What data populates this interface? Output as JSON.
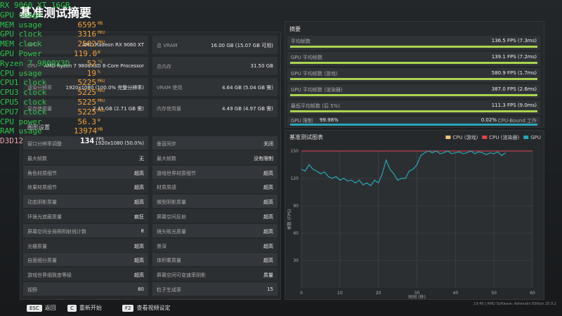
{
  "overlay": {
    "rows": [
      {
        "label": "RX 9060 XT 16GB"
      },
      {
        "label": "GPU usage"
      },
      {
        "label": "MEM usage",
        "value": "6595",
        "unit": "MB"
      },
      {
        "label": "GPU clock",
        "value": "3316",
        "unit": "MHz"
      },
      {
        "label": "MEM clock",
        "value": "2502",
        "unit": "MHz"
      },
      {
        "label": "GPU Power",
        "value": "119.0",
        "unit": "W"
      },
      {
        "label": "Ryzen 7 9800X3D",
        "value": "52",
        "unit": "°C"
      },
      {
        "label": "CPU usage",
        "value": "19",
        "unit": "%"
      },
      {
        "label": "CPU1 clock",
        "value": "5225",
        "unit": "MHz"
      },
      {
        "label": "CPU3 clock",
        "value": "5225",
        "unit": "MHz"
      },
      {
        "label": "CPU5 clock",
        "value": "5225",
        "unit": "MHz"
      },
      {
        "label": "CPU7 clock",
        "value": "5225",
        "unit": "MHz"
      },
      {
        "label": "CPU power",
        "value": "56.3",
        "unit": "W"
      },
      {
        "label": "RAM usage",
        "value": "13974",
        "unit": "MB"
      },
      {
        "label": "D3D12",
        "value": "134",
        "unit": "FPS"
      }
    ]
  },
  "header": {
    "title": "基准测试摘要"
  },
  "system": {
    "rows": [
      [
        "GPU",
        "AMD Radeon RX 9060 XT",
        "总 VRAM",
        "16.00 GB (15.07 GB 可用)"
      ],
      [
        "CPU",
        "AMD Ryzen 7 9800X3D 8-Core Processor",
        "总内存",
        "31.50 GB"
      ],
      [
        "渲染分辨率",
        "1920x1080 (100.0% 完整分辨率)",
        "VRAM 使用",
        "4.64 GB (5.04 GB 需)"
      ],
      [
        "显存使用量",
        "2.45 GB (2.71 GB 需)",
        "内存使用量",
        "4.49 GB (4.97 GB 需)"
      ]
    ]
  },
  "settings": {
    "title": "图形设置",
    "rows": [
      [
        "窗口分辨率调整",
        "1920x1080 (50.0%)",
        "垂直同步",
        "关闭"
      ],
      [
        "最大帧数",
        "无",
        "最大帧数",
        "没有限制"
      ],
      [
        "角色材质细节",
        "超高",
        "游戏世界材质细节",
        "超高"
      ],
      [
        "效果材质细节",
        "超高",
        "材质质感",
        "超高"
      ],
      [
        "动态阴影质量",
        "超高",
        "微型阴影质量",
        "超高"
      ],
      [
        "环境光遮蔽质量",
        "疯狂",
        "屏幕空间反射",
        "超高"
      ],
      [
        "屏幕空间全局照明射线计数",
        "8",
        "镜头眩光质量",
        "超高"
      ],
      [
        "光栅质量",
        "超高",
        "景深",
        "超高"
      ],
      [
        "自面细分质量",
        "超高",
        "体积雾质量",
        "超高"
      ],
      [
        "游戏世界细致度等级",
        "超高",
        "屏幕空间可变速率阴影",
        "质量"
      ],
      [
        "视野",
        "80",
        "粒子生成率",
        "15"
      ]
    ]
  },
  "summary": {
    "title": "摘要",
    "rows": [
      {
        "label": "平均帧数",
        "value": "136.5 FPS (7.3ms)"
      },
      {
        "label": "GPU 平均帧数",
        "value": "139.1 FPS (7.2ms)"
      },
      {
        "label": "GPU 平均帧数 (游戏)",
        "value": "580.9 FPS (1.7ms)"
      },
      {
        "label": "GPU 平均帧数 (渲染器)",
        "value": "387.0 FPS (2.6ms)"
      },
      {
        "label": "最低平均帧数 (后 5%)",
        "value": "111.3 FPS (9.0ms)"
      }
    ],
    "bound": {
      "label": "GPU 限制",
      "gpu": "99.98%",
      "cpu": "0.02%",
      "cpu_label": "CPU-Bound 工作"
    }
  },
  "chart_data": {
    "type": "line",
    "title": "基准测试图表",
    "legend": [
      {
        "name": "CPU (游戏)",
        "color": "#f0c27a"
      },
      {
        "name": "CPU (渲染器)",
        "color": "#e0454f"
      }
    ],
    "x": [
      0,
      1,
      2,
      3,
      4,
      5,
      6,
      7,
      8,
      9,
      10,
      11,
      12,
      13,
      14,
      15,
      16,
      17,
      18,
      19,
      20,
      21,
      22,
      23,
      24,
      25,
      26,
      27,
      28,
      29,
      30,
      31,
      32,
      33,
      34,
      35,
      36,
      37,
      38,
      39,
      40,
      41,
      42,
      43,
      44,
      45,
      46,
      47,
      48,
      49,
      50,
      51,
      52,
      53
    ],
    "series": [
      {
        "name": "GPU",
        "color": "#27a6b8",
        "values": [
          130,
          128,
          135,
          130,
          128,
          125,
          127,
          122,
          120,
          122,
          118,
          120,
          117,
          118,
          115,
          118,
          113,
          115,
          112,
          118,
          115,
          125,
          140,
          130,
          125,
          118,
          120,
          120,
          128,
          130,
          135,
          145,
          148,
          150,
          148,
          150,
          147,
          148,
          150,
          147,
          148,
          149,
          147,
          148,
          150,
          147,
          149,
          148,
          146,
          148,
          147,
          149,
          145,
          148
        ]
      }
    ],
    "xlabel": "时间 (秒)",
    "ylabel": "帧数 (FPS)",
    "xlim": [
      0,
      60
    ],
    "ylim": [
      0,
      150
    ],
    "xticks": [
      0,
      10,
      20,
      30,
      40,
      50,
      60
    ],
    "yticks": [
      30,
      60,
      90,
      120,
      150
    ],
    "grid": true
  },
  "footer": {
    "keys": [
      {
        "key": "ESC",
        "label": "返回"
      },
      {
        "key": "C",
        "label": "重新开始"
      },
      {
        "key": "F2",
        "label": "查看视频设定"
      }
    ],
    "version": "19:40 | AMD Software: Adrenalin Edition 25.9.2"
  }
}
